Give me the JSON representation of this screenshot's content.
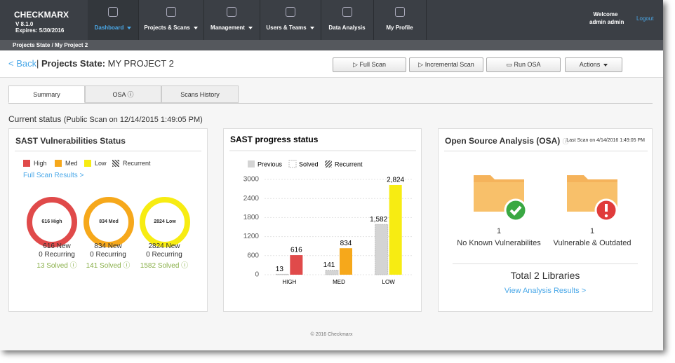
{
  "header": {
    "logo": "CHECKMARX",
    "version": "V 8.1.0",
    "expires": "Expires: 5/30/2016",
    "nav": [
      "Dashboard",
      "Projects & Scans",
      "Management",
      "Users & Teams",
      "Data Analysis",
      "My Profile"
    ],
    "welcome": "Welcome",
    "user": "admin admin",
    "logout": "Logout"
  },
  "breadcrumb": "Projects State / My Project 2",
  "page": {
    "back": "< Back",
    "title": "Projects State:",
    "project": "MY PROJECT 2",
    "buttons": [
      "Full Scan",
      "Incremental Scan",
      "Run OSA",
      "Actions"
    ]
  },
  "tabs": [
    "Summary",
    "OSA",
    "Scans History"
  ],
  "status": {
    "label": "Current status",
    "detail": "(Public Scan on 12/14/2015 1:49:05 PM)"
  },
  "sast": {
    "title": "SAST Vulnerabilities Status",
    "legend": [
      "High",
      "Med",
      "Low",
      "Recurrent"
    ],
    "link": "Full Scan Results >",
    "rings": [
      {
        "label": "616 High",
        "new": "616 New",
        "recurring": "0 Recurring",
        "solved": "13 Solved"
      },
      {
        "label": "834 Med",
        "new": "834 New",
        "recurring": "0 Recurring",
        "solved": "141 Solved"
      },
      {
        "label": "2824 Low",
        "new": "2824 New",
        "recurring": "0 Recurring",
        "solved": "1582 Solved"
      }
    ]
  },
  "chart_data": {
    "type": "bar",
    "title": "SAST progress status",
    "legend": [
      "Previous",
      "Solved",
      "Recurrent"
    ],
    "categories": [
      "HIGH",
      "MED",
      "LOW"
    ],
    "series": [
      {
        "color": "#d4d4d4",
        "values": [
          13,
          141,
          1582
        ],
        "value_labels": [
          "13",
          "141",
          "1,582"
        ]
      },
      {
        "colors": [
          "#e04a4a",
          "#f6a81b",
          "#f7ec12"
        ],
        "values": [
          616,
          834,
          2824
        ],
        "value_labels": [
          "616",
          "834",
          "2,824"
        ]
      }
    ],
    "ylim": [
      0,
      3000
    ],
    "yticks": [
      0,
      600,
      1200,
      1800,
      2400,
      3000
    ],
    "grid": true
  },
  "osa": {
    "title": "Open Source Analysis (OSA)",
    "last_scan": "Last Scan on 4/14/2016 1:49:05 PM",
    "items": [
      {
        "count": "1",
        "label": "No Known Vulnerabilites"
      },
      {
        "count": "1",
        "label": "Vulnerable & Outdated"
      }
    ],
    "total": "Total 2 Libraries",
    "link": "View Analysis Results >"
  },
  "footer": "© 2016 Checkmarx"
}
